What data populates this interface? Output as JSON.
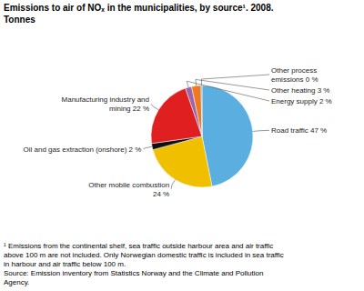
{
  "chart_data": {
    "type": "pie",
    "title": "Emissions to air of NOₓ in the municipalities, by source¹. 2008.\nTonnes",
    "categories": [
      "Road traffic 47 %",
      "Other mobile combustion\n24 %",
      "Oil and gas extraction (onshore) 2 %",
      "Manufacturing industry and\nmining 22 %",
      "Energy supply 2 %",
      "Other heating 3 %",
      "Other process\nemissions 0 %"
    ],
    "values": [
      47,
      24,
      2,
      22,
      2,
      3,
      0.3
    ],
    "colors": [
      "#5aafe0",
      "#f0c000",
      "#111111",
      "#e02020",
      "#9966aa",
      "#f07820",
      "#5aafe0"
    ],
    "annotations": [
      "¹ Emissions from the continental shelf, sea traffic outside harbour area and air traffic\nabove 100 m are not included. Only Norwegian domestic traffic is included in sea traffic\nin harbour and air traffic below 100 m.\nSource: Emission inventory from Statistics Norway and the Climate and Pollution\nAgency."
    ]
  }
}
